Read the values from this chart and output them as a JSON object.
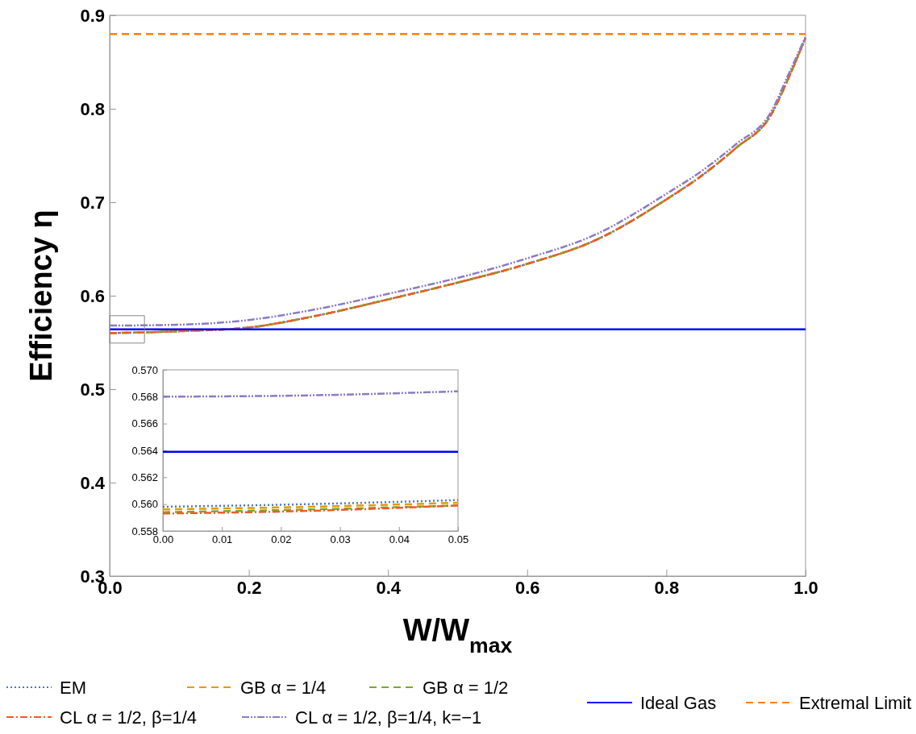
{
  "chart_data": [
    {
      "type": "line",
      "xlabel": "W/W$_{max}$",
      "ylabel": "Efficiency η",
      "xlim": [
        0,
        1
      ],
      "ylim": [
        0.3,
        0.9
      ],
      "xticks": [
        {
          "value": 0,
          "label": "0.0"
        },
        {
          "value": 0.2,
          "label": "0.2"
        },
        {
          "value": 0.4,
          "label": "0.4"
        },
        {
          "value": 0.6,
          "label": "0.6"
        },
        {
          "value": 0.8,
          "label": "0.8"
        },
        {
          "value": 1,
          "label": "1.0"
        }
      ],
      "yticks": [
        0.3,
        0.4,
        0.5,
        0.6,
        0.7,
        0.8,
        0.9
      ],
      "x": [
        0,
        0.1,
        0.2,
        0.3,
        0.4,
        0.5,
        0.6,
        0.7,
        0.8,
        0.85,
        0.9,
        0.95,
        0.975,
        1
      ],
      "grid": false,
      "legend": "bottom",
      "marker": "none",
      "series": [
        {
          "name": "EM",
          "color": "#4a78c8",
          "line_style": "dotted",
          "values": [
            0.56,
            0.562,
            0.566,
            0.579,
            0.596,
            0.614,
            0.634,
            0.66,
            0.703,
            0.728,
            0.758,
            0.793,
            0.832,
            0.876
          ]
        },
        {
          "name": "GB α = 1/4",
          "color": "#e69a00",
          "line_style": "dashed",
          "values": [
            0.56,
            0.562,
            0.566,
            0.579,
            0.596,
            0.614,
            0.634,
            0.66,
            0.703,
            0.728,
            0.758,
            0.793,
            0.832,
            0.876
          ]
        },
        {
          "name": "GB α = 1/2",
          "color": "#7aaa2a",
          "line_style": "dashed",
          "values": [
            0.56,
            0.562,
            0.566,
            0.579,
            0.596,
            0.614,
            0.634,
            0.66,
            0.703,
            0.728,
            0.758,
            0.793,
            0.832,
            0.876
          ]
        },
        {
          "name": "CL α = 1/2, β=1/4",
          "color": "#f05a28",
          "line_style": "dashdot",
          "values": [
            0.56,
            0.562,
            0.566,
            0.579,
            0.596,
            0.614,
            0.634,
            0.66,
            0.703,
            0.728,
            0.758,
            0.793,
            0.832,
            0.876
          ]
        },
        {
          "name": "CL α = 1/2, β=1/4, k=−1",
          "color": "#8b7bc4",
          "line_style": "dashdotdot",
          "values": [
            0.568,
            0.569,
            0.574,
            0.586,
            0.602,
            0.619,
            0.64,
            0.666,
            0.709,
            0.733,
            0.762,
            0.796,
            0.836,
            0.877
          ]
        },
        {
          "name": "Ideal Gas",
          "color": "#0000ff",
          "line_style": "solid",
          "x": [
            0,
            1
          ],
          "values": [
            0.564,
            0.564
          ]
        },
        {
          "name": "Extremal Limit",
          "color": "#ff7f0e",
          "line_style": "dashed",
          "x": [
            0,
            1
          ],
          "values": [
            0.88,
            0.88
          ]
        }
      ]
    },
    {
      "type": "line",
      "xlim": [
        0,
        0.05
      ],
      "ylim": [
        0.558,
        0.57
      ],
      "xticks": [
        {
          "value": 0,
          "label": "0.00"
        },
        {
          "value": 0.01,
          "label": "0.01"
        },
        {
          "value": 0.02,
          "label": "0.02"
        },
        {
          "value": 0.03,
          "label": "0.03"
        },
        {
          "value": 0.04,
          "label": "0.04"
        },
        {
          "value": 0.05,
          "label": "0.05"
        }
      ],
      "yticks": [
        0.558,
        {
          "value": 0.56,
          "label": "0.560"
        },
        0.562,
        0.564,
        0.566,
        0.568,
        {
          "value": 0.57,
          "label": "0.570"
        }
      ],
      "x": [
        0,
        0.025,
        0.05
      ],
      "grid": false,
      "legend": false,
      "marker": "none",
      "series": [
        {
          "color": "#4a78c8",
          "line_style": "dotted",
          "values": [
            0.5598,
            0.56,
            0.5603
          ]
        },
        {
          "color": "#e69a00",
          "line_style": "dashed",
          "values": [
            0.5596,
            0.5598,
            0.5601
          ]
        },
        {
          "color": "#7aaa2a",
          "line_style": "dashed",
          "values": [
            0.5594,
            0.5596,
            0.5599
          ]
        },
        {
          "color": "#f05a28",
          "line_style": "dashdot",
          "values": [
            0.5593,
            0.5595,
            0.5599
          ]
        },
        {
          "color": "#8b7bc4",
          "line_style": "dashdotdot",
          "values": [
            0.568,
            0.5681,
            0.5684
          ]
        },
        {
          "color": "#0000ff",
          "line_style": "solid",
          "x": [
            0,
            0.05
          ],
          "values": [
            0.5639,
            0.5639
          ]
        }
      ]
    }
  ]
}
